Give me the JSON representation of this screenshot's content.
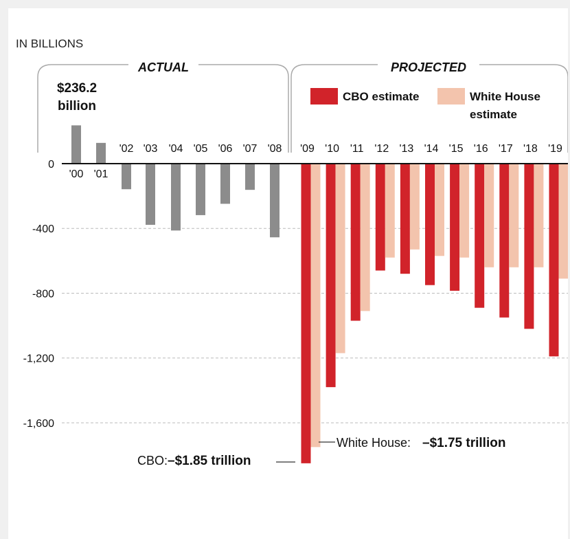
{
  "chart_data": {
    "type": "bar",
    "unit_label": "IN BILLIONS",
    "y_ticks": [
      {
        "value": 0,
        "label": "0"
      },
      {
        "value": -400,
        "label": "-400"
      },
      {
        "value": -800,
        "label": "-800"
      },
      {
        "value": -1200,
        "label": "-1,200"
      },
      {
        "value": -1600,
        "label": "-1,600"
      }
    ],
    "ylim": [
      -1850,
      236.2
    ],
    "sections": {
      "actual": "ACTUAL",
      "projected": "PROJECTED"
    },
    "legend": {
      "cbo": {
        "label": "CBO estimate",
        "color": "#d1232a"
      },
      "wh": {
        "line1": "White House",
        "line2": "estimate",
        "color": "#f3c4ad"
      },
      "actual_color": "#8c8c8c"
    },
    "actual": {
      "categories": [
        "'00",
        "'01",
        "'02",
        "'03",
        "'04",
        "'05",
        "'06",
        "'07",
        "'08"
      ],
      "values": [
        236.2,
        128,
        -158,
        -378,
        -413,
        -318,
        -248,
        -162,
        -455
      ]
    },
    "projected": {
      "categories": [
        "'09",
        "'10",
        "'11",
        "'12",
        "'13",
        "'14",
        "'15",
        "'16",
        "'17",
        "'18",
        "'19"
      ],
      "cbo": [
        -1850,
        -1380,
        -970,
        -660,
        -680,
        -750,
        -785,
        -890,
        -950,
        -1020,
        -1190
      ],
      "white_house": [
        -1750,
        -1170,
        -910,
        -580,
        -530,
        -570,
        -580,
        -640,
        -640,
        -640,
        -710
      ]
    },
    "annotations": {
      "peak_value": "$236.2",
      "peak_unit": "billion",
      "wh_label": "White House:",
      "wh_value": "–$1.75 trillion",
      "cbo_label": "CBO:",
      "cbo_value": "–$1.85 trillion"
    }
  }
}
